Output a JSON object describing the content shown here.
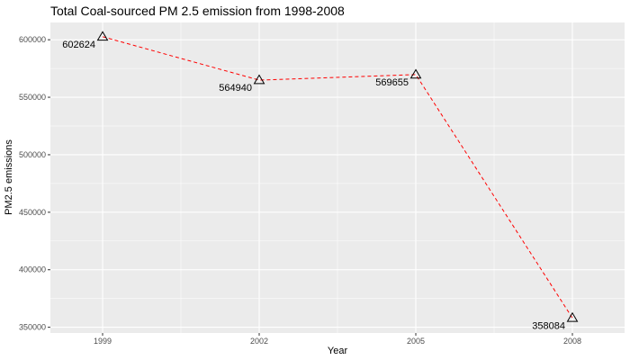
{
  "chart_data": {
    "type": "line",
    "title": "Total Coal-sourced PM 2.5 emission from 1998-2008",
    "xlabel": "Year",
    "ylabel": "PM2.5 emissions",
    "x": [
      1999,
      2002,
      2005,
      2008
    ],
    "xtick_labels": [
      "1999",
      "2002",
      "2005",
      "2008"
    ],
    "series": [
      {
        "values": [
          602624,
          564940,
          569655,
          358084
        ]
      }
    ],
    "data_labels": [
      "602624",
      "564940",
      "569655",
      "358084"
    ],
    "yticks": [
      350000,
      400000,
      450000,
      500000,
      550000,
      600000
    ],
    "ytick_labels": [
      "350000",
      "400000",
      "450000",
      "500000",
      "550000",
      "600000"
    ],
    "ylim": [
      345000,
      615000
    ],
    "xlim": [
      1998.0,
      2009.0
    ],
    "line_style": "dashed",
    "marker": "triangle-open",
    "grid": true,
    "colors": {
      "panel": "#ebebeb",
      "grid": "#ffffff",
      "line": "#ff0000",
      "marker": "#000000"
    }
  }
}
